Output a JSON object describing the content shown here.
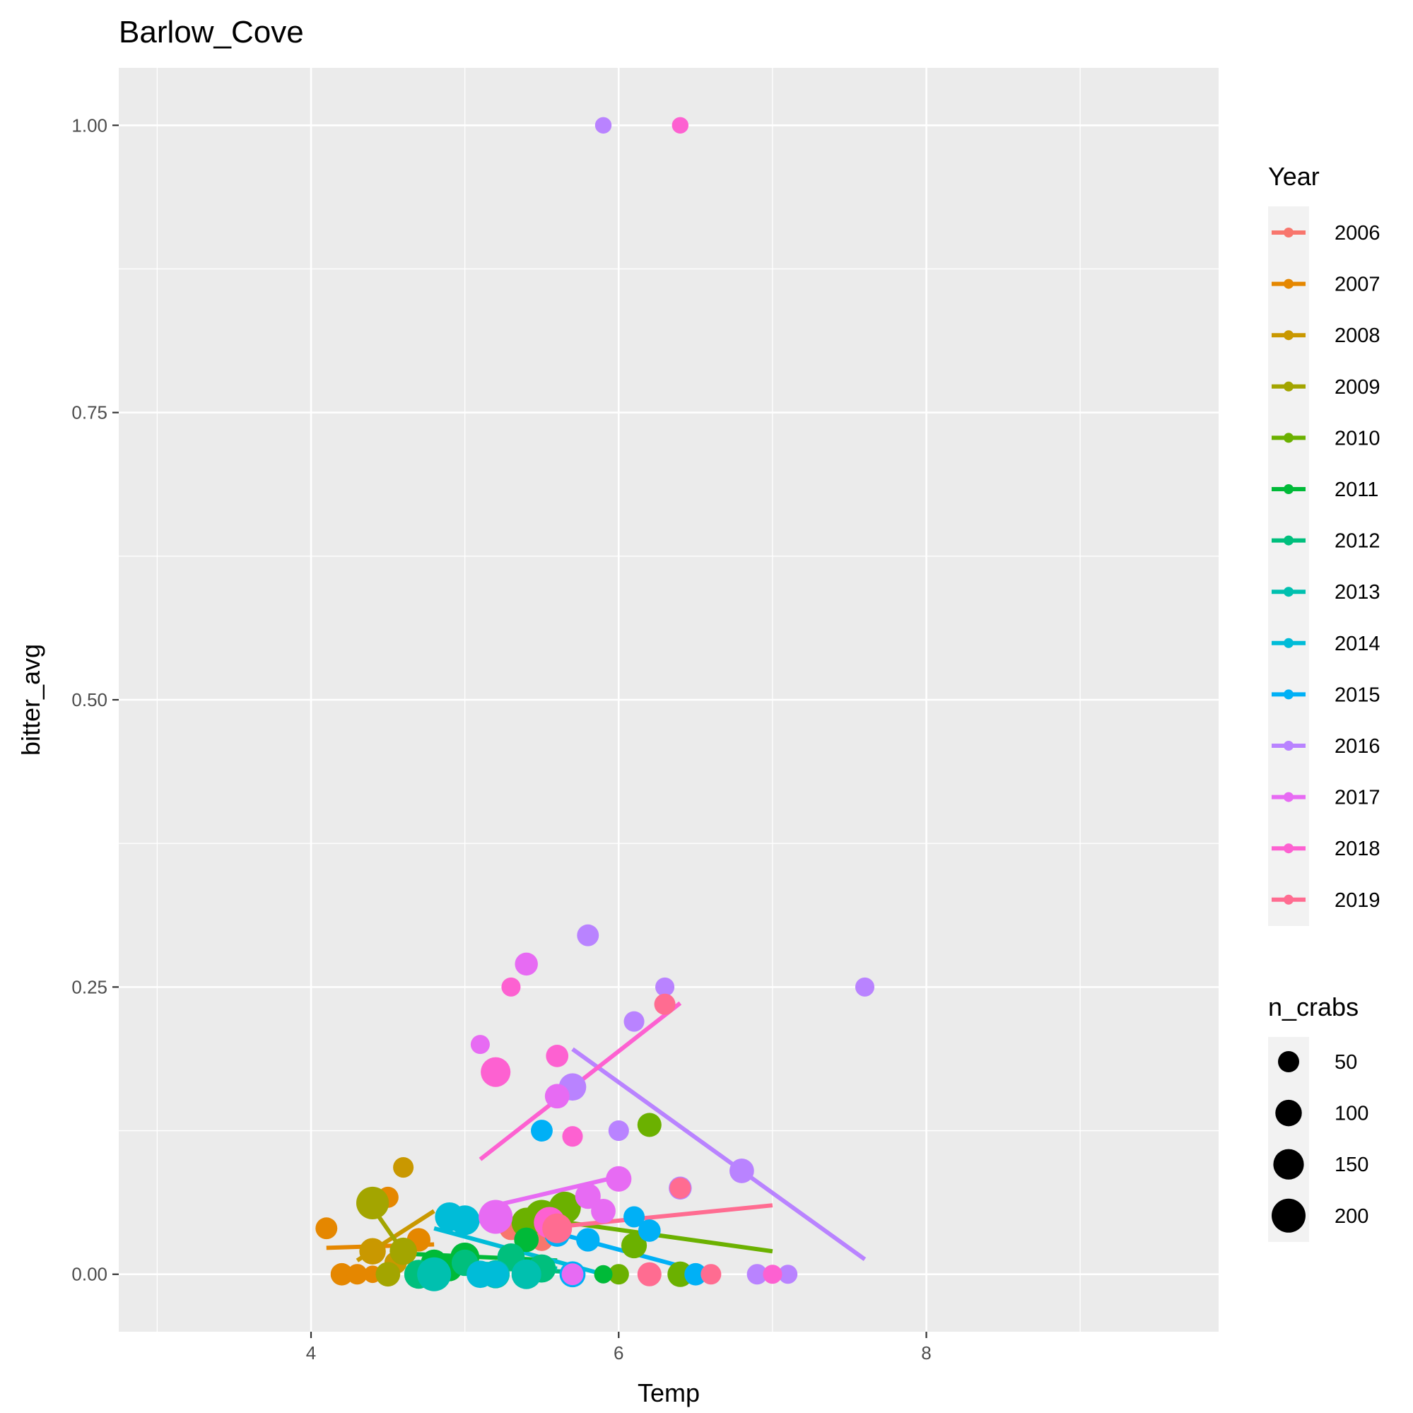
{
  "chart_data": {
    "type": "scatter",
    "title": "Barlow_Cove",
    "xlabel": "Temp",
    "ylabel": "bitter_avg",
    "xlim": [
      2.75,
      9.9
    ],
    "ylim": [
      -0.05,
      1.05
    ],
    "x_ticks": [
      4,
      6,
      8
    ],
    "x_tick_labels": [
      "4",
      "6",
      "8"
    ],
    "y_ticks": [
      0,
      0.25,
      0.5,
      0.75,
      1.0
    ],
    "y_tick_labels": [
      "0.00",
      "0.25",
      "0.50",
      "0.75",
      "1.00"
    ],
    "grid": true,
    "legend_position": "right",
    "color_legend": {
      "title": "Year",
      "entries": [
        {
          "label": "2006",
          "color": "#F8766D"
        },
        {
          "label": "2007",
          "color": "#E58700"
        },
        {
          "label": "2008",
          "color": "#C99800"
        },
        {
          "label": "2009",
          "color": "#A3A500"
        },
        {
          "label": "2010",
          "color": "#6BB100"
        },
        {
          "label": "2011",
          "color": "#00BA38"
        },
        {
          "label": "2012",
          "color": "#00BF7D"
        },
        {
          "label": "2013",
          "color": "#00C0AF"
        },
        {
          "label": "2014",
          "color": "#00BCD8"
        },
        {
          "label": "2015",
          "color": "#00B0F6"
        },
        {
          "label": "2016",
          "color": "#B983FF"
        },
        {
          "label": "2017",
          "color": "#E76BF3"
        },
        {
          "label": "2018",
          "color": "#FD61D1"
        },
        {
          "label": "2019",
          "color": "#FF6C91"
        }
      ]
    },
    "size_legend": {
      "title": "n_crabs",
      "entries": [
        {
          "label": "50",
          "n": 50
        },
        {
          "label": "100",
          "n": 100
        },
        {
          "label": "150",
          "n": 150
        },
        {
          "label": "200",
          "n": 200
        }
      ]
    },
    "series": [
      {
        "name": "2006",
        "color": "#F8766D",
        "points": [
          [
            5.3,
            0.04,
            70
          ],
          [
            5.4,
            0.0,
            90
          ],
          [
            5.5,
            0.03,
            60
          ]
        ],
        "fit": [
          [
            5.3,
            0.04
          ],
          [
            5.5,
            0.03
          ]
        ]
      },
      {
        "name": "2007",
        "color": "#E58700",
        "points": [
          [
            4.1,
            0.04,
            55
          ],
          [
            4.2,
            0.0,
            60
          ],
          [
            4.3,
            0.0,
            45
          ],
          [
            4.4,
            0.0,
            25
          ],
          [
            4.5,
            0.067,
            50
          ],
          [
            4.7,
            0.03,
            70
          ]
        ],
        "fit": [
          [
            4.1,
            0.023
          ],
          [
            4.8,
            0.026
          ]
        ]
      },
      {
        "name": "2008",
        "color": "#C99800",
        "points": [
          [
            4.6,
            0.093,
            45
          ],
          [
            4.4,
            0.02,
            100
          ],
          [
            4.55,
            0.01,
            60
          ]
        ],
        "fit": [
          [
            4.3,
            0.012
          ],
          [
            4.8,
            0.055
          ]
        ]
      },
      {
        "name": "2009",
        "color": "#A3A500",
        "points": [
          [
            4.4,
            0.062,
            180
          ],
          [
            4.5,
            0.0,
            80
          ],
          [
            4.6,
            0.02,
            110
          ]
        ],
        "fit": [
          [
            4.4,
            0.058
          ],
          [
            4.7,
            0.0
          ]
        ]
      },
      {
        "name": "2010",
        "color": "#6BB100",
        "points": [
          [
            5.4,
            0.045,
            140
          ],
          [
            5.5,
            0.05,
            200
          ],
          [
            5.65,
            0.058,
            170
          ],
          [
            6.1,
            0.025,
            90
          ],
          [
            6.2,
            0.13,
            75
          ],
          [
            6.4,
            0.0,
            90
          ],
          [
            6.0,
            0.0,
            45
          ]
        ],
        "fit": [
          [
            5.4,
            0.05
          ],
          [
            7.0,
            0.02
          ]
        ]
      },
      {
        "name": "2011",
        "color": "#00BA38",
        "points": [
          [
            4.7,
            0.0,
            110
          ],
          [
            4.8,
            0.01,
            100
          ],
          [
            4.9,
            0.005,
            90
          ],
          [
            5.0,
            0.015,
            130
          ],
          [
            5.4,
            0.03,
            80
          ],
          [
            5.9,
            0.0,
            30
          ]
        ],
        "fit": [
          [
            4.6,
            0.018
          ],
          [
            5.6,
            0.012
          ]
        ]
      },
      {
        "name": "2012",
        "color": "#00BF7D",
        "points": [
          [
            4.7,
            0.0,
            130
          ],
          [
            5.0,
            0.01,
            100
          ],
          [
            5.3,
            0.015,
            110
          ],
          [
            5.5,
            0.005,
            120
          ]
        ],
        "fit": [
          [
            4.7,
            0.008
          ],
          [
            5.7,
            0.002
          ]
        ]
      },
      {
        "name": "2013",
        "color": "#00C0AF",
        "points": [
          [
            4.8,
            0.0,
            200
          ],
          [
            5.2,
            0.0,
            120
          ],
          [
            5.4,
            0.0,
            140
          ]
        ],
        "fit": [
          [
            4.8,
            0.012
          ],
          [
            5.6,
            0.005
          ]
        ]
      },
      {
        "name": "2014",
        "color": "#00BCD8",
        "points": [
          [
            4.9,
            0.05,
            130
          ],
          [
            5.0,
            0.047,
            140
          ],
          [
            5.1,
            0.0,
            110
          ],
          [
            5.2,
            0.0,
            100
          ]
        ],
        "fit": [
          [
            4.8,
            0.04
          ],
          [
            5.9,
            0.0
          ]
        ]
      },
      {
        "name": "2015",
        "color": "#00B0F6",
        "points": [
          [
            5.5,
            0.125,
            55
          ],
          [
            5.8,
            0.03,
            70
          ],
          [
            6.1,
            0.05,
            50
          ],
          [
            6.2,
            0.038,
            60
          ],
          [
            5.7,
            0.0,
            95
          ],
          [
            6.5,
            0.0,
            60
          ],
          [
            5.6,
            0.035,
            90
          ]
        ],
        "fit": [
          [
            5.4,
            0.043
          ],
          [
            6.6,
            0.0
          ]
        ]
      },
      {
        "name": "2016",
        "color": "#B983FF",
        "points": [
          [
            5.9,
            1.0,
            20
          ],
          [
            5.8,
            0.295,
            55
          ],
          [
            6.3,
            0.25,
            35
          ],
          [
            7.6,
            0.25,
            35
          ],
          [
            6.1,
            0.22,
            45
          ],
          [
            6.0,
            0.125,
            45
          ],
          [
            5.7,
            0.163,
            110
          ],
          [
            6.4,
            0.075,
            65
          ],
          [
            6.8,
            0.09,
            80
          ],
          [
            6.9,
            0.0,
            45
          ],
          [
            7.1,
            0.0,
            35
          ]
        ],
        "fit": [
          [
            5.7,
            0.196
          ],
          [
            7.6,
            0.013
          ]
        ]
      },
      {
        "name": "2017",
        "color": "#E76BF3",
        "points": [
          [
            5.1,
            0.2,
            35
          ],
          [
            5.4,
            0.27,
            65
          ],
          [
            5.6,
            0.155,
            80
          ],
          [
            5.2,
            0.05,
            200
          ],
          [
            5.8,
            0.068,
            90
          ],
          [
            5.9,
            0.055,
            80
          ],
          [
            6.0,
            0.083,
            90
          ],
          [
            5.7,
            0.0,
            55
          ]
        ],
        "fit": [
          [
            5.2,
            0.06
          ],
          [
            6.0,
            0.085
          ]
        ]
      },
      {
        "name": "2018",
        "color": "#FD61D1",
        "points": [
          [
            6.4,
            1.0,
            20
          ],
          [
            5.3,
            0.25,
            35
          ],
          [
            5.2,
            0.176,
            140
          ],
          [
            5.6,
            0.19,
            60
          ],
          [
            5.7,
            0.12,
            45
          ],
          [
            5.55,
            0.045,
            160
          ],
          [
            7.0,
            0.0,
            35
          ]
        ],
        "fit": [
          [
            5.1,
            0.1
          ],
          [
            6.4,
            0.236
          ]
        ]
      },
      {
        "name": "2019",
        "color": "#FF6C91",
        "points": [
          [
            6.3,
            0.235,
            50
          ],
          [
            6.4,
            0.075,
            50
          ],
          [
            5.6,
            0.04,
            140
          ],
          [
            6.2,
            0.0,
            75
          ],
          [
            6.6,
            0.0,
            45
          ]
        ],
        "fit": [
          [
            5.5,
            0.04
          ],
          [
            7.0,
            0.06
          ]
        ]
      }
    ]
  }
}
